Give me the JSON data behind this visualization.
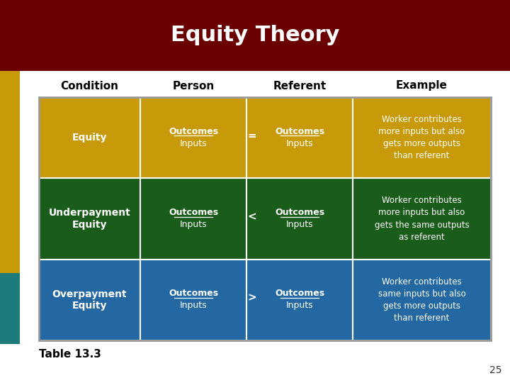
{
  "title": "Equity Theory",
  "title_color": "#FFFFFF",
  "title_bg": "#6B0000",
  "bg_color": "#FFFFFF",
  "header_labels": [
    "Condition",
    "Person",
    "Referent",
    "Example"
  ],
  "rows": [
    {
      "condition": "Equity",
      "person_line1": "Outcomes",
      "operator": "=",
      "referent_line1": "Outcomes",
      "person_line2": "Inputs",
      "referent_line2": "Inputs",
      "example": "Worker contributes\nmore inputs but also\ngets more outputs\nthan referent",
      "color": "#C89A0A"
    },
    {
      "condition": "Underpayment\nEquity",
      "person_line1": "Outcomes",
      "operator": "<",
      "referent_line1": "Outcomes",
      "person_line2": "Inputs",
      "referent_line2": "Inputs",
      "example": "Worker contributes\nmore inputs but also\ngets the same outputs\nas referent",
      "color": "#1A5C1A"
    },
    {
      "condition": "Overpayment\nEquity",
      "person_line1": "Outcomes",
      "operator": ">",
      "referent_line1": "Outcomes",
      "person_line2": "Inputs",
      "referent_line2": "Inputs",
      "example": "Worker contributes\nsame inputs but also\ngets more outputs\nthan referent",
      "color": "#2368A2"
    }
  ],
  "table_caption": "Table 13.3",
  "page_number": "25",
  "sidebar_gold": "#C89A0A",
  "sidebar_teal": "#1C7A7A",
  "header_font_size": 11,
  "title_font_size": 22
}
